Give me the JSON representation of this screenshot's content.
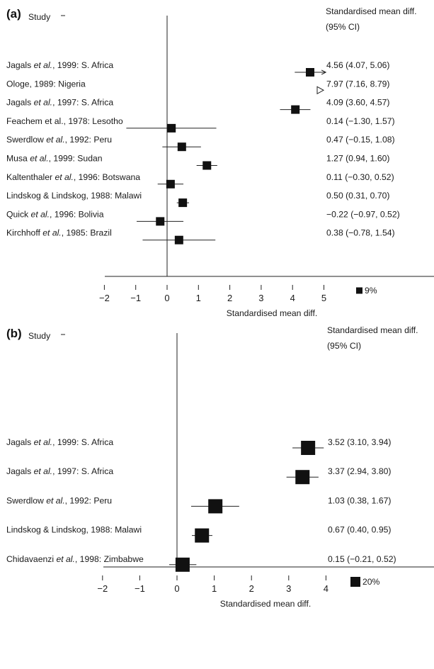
{
  "chart_data": [
    {
      "type": "forest",
      "panel_label": "(a)",
      "study_header": "Study",
      "effect_header": [
        "Standardised mean diff.",
        "(95% CI)"
      ],
      "xlabel": "Standardised mean diff.",
      "xlim": [
        -2,
        5
      ],
      "xticks": [
        "−2",
        "−1",
        "0",
        "1",
        "2",
        "3",
        "4",
        "5"
      ],
      "tick_values": [
        -2,
        -1,
        0,
        1,
        2,
        3,
        4,
        5
      ],
      "legend_label": "9%",
      "studies": [
        {
          "name": "Jagals ",
          "name_italic": "et al.",
          "name_rest": ", 1999: S. Africa",
          "estimate": 4.56,
          "lower": 4.07,
          "upper": 5.06,
          "ci_text": "4.56 (4.07, 5.06)",
          "upper_arrow": true,
          "weight": 1
        },
        {
          "name": "Ologe, 1989: Nigeria",
          "name_italic": "",
          "name_rest": "",
          "estimate": 7.97,
          "lower": 7.16,
          "upper": 8.79,
          "ci_text": "7.97 (7.16, 8.79)",
          "off_scale": true,
          "weight": 1
        },
        {
          "name": "Jagals ",
          "name_italic": "et al.",
          "name_rest": ", 1997: S. Africa",
          "estimate": 4.09,
          "lower": 3.6,
          "upper": 4.57,
          "ci_text": "4.09 (3.60, 4.57)",
          "weight": 1
        },
        {
          "name": "Feachem et al., 1978: Lesotho",
          "name_italic": "",
          "name_rest": "",
          "estimate": 0.14,
          "lower": -1.3,
          "upper": 1.57,
          "ci_text": "0.14 (−1.30, 1.57)",
          "weight": 1
        },
        {
          "name": "Swerdlow ",
          "name_italic": "et al.",
          "name_rest": ", 1992: Peru",
          "estimate": 0.47,
          "lower": -0.15,
          "upper": 1.08,
          "ci_text": "0.47 (−0.15, 1.08)",
          "weight": 1
        },
        {
          "name": "Musa ",
          "name_italic": "et al.",
          "name_rest": ", 1999: Sudan",
          "estimate": 1.27,
          "lower": 0.94,
          "upper": 1.6,
          "ci_text": "1.27 (0.94, 1.60)",
          "weight": 1
        },
        {
          "name": "Kaltenthaler ",
          "name_italic": "et al.",
          "name_rest": ", 1996: Botswana",
          "estimate": 0.11,
          "lower": -0.3,
          "upper": 0.52,
          "ci_text": "0.11 (−0.30, 0.52)",
          "weight": 1
        },
        {
          "name": "Lindskog & Lindskog, 1988: Malawi",
          "name_italic": "",
          "name_rest": "",
          "estimate": 0.5,
          "lower": 0.31,
          "upper": 0.7,
          "ci_text": "0.50 (0.31, 0.70)",
          "weight": 1
        },
        {
          "name": "Quick ",
          "name_italic": "et al.",
          "name_rest": ", 1996: Bolivia",
          "estimate": -0.22,
          "lower": -0.97,
          "upper": 0.52,
          "ci_text": "−0.22 (−0.97, 0.52)",
          "weight": 1
        },
        {
          "name": "Kirchhoff ",
          "name_italic": "et al.",
          "name_rest": ", 1985: Brazil",
          "estimate": 0.38,
          "lower": -0.78,
          "upper": 1.54,
          "ci_text": "0.38 (−0.78, 1.54)",
          "weight": 1
        }
      ]
    },
    {
      "type": "forest",
      "panel_label": "(b)",
      "study_header": "Study",
      "effect_header": [
        "Standardised mean diff.",
        "(95% CI)"
      ],
      "xlabel": "Standardised mean diff.",
      "xlim": [
        -2,
        4
      ],
      "xticks": [
        "−2",
        "−1",
        "0",
        "1",
        "2",
        "3",
        "4"
      ],
      "tick_values": [
        -2,
        -1,
        0,
        1,
        2,
        3,
        4
      ],
      "legend_label": "20%",
      "studies": [
        {
          "name": "Jagals ",
          "name_italic": "et al.",
          "name_rest": ", 1999: S. Africa",
          "estimate": 3.52,
          "lower": 3.1,
          "upper": 3.94,
          "ci_text": "3.52 (3.10, 3.94)",
          "weight": 1
        },
        {
          "name": "Jagals ",
          "name_italic": "et al.",
          "name_rest": ", 1997: S. Africa",
          "estimate": 3.37,
          "lower": 2.94,
          "upper": 3.8,
          "ci_text": "3.37 (2.94, 3.80)",
          "weight": 1
        },
        {
          "name": "Swerdlow ",
          "name_italic": "et al.",
          "name_rest": ", 1992: Peru",
          "estimate": 1.03,
          "lower": 0.38,
          "upper": 1.67,
          "ci_text": "1.03 (0.38, 1.67)",
          "weight": 1
        },
        {
          "name": "Lindskog & Lindskog, 1988: Malawi",
          "name_italic": "",
          "name_rest": "",
          "estimate": 0.67,
          "lower": 0.4,
          "upper": 0.95,
          "ci_text": "0.67 (0.40, 0.95)",
          "weight": 1
        },
        {
          "name": "Chidavaenzi ",
          "name_italic": "et al.",
          "name_rest": ", 1998: Zimbabwe",
          "estimate": 0.15,
          "lower": -0.21,
          "upper": 0.52,
          "ci_text": "0.15 (−0.21, 0.52)",
          "weight": 1
        }
      ]
    }
  ]
}
